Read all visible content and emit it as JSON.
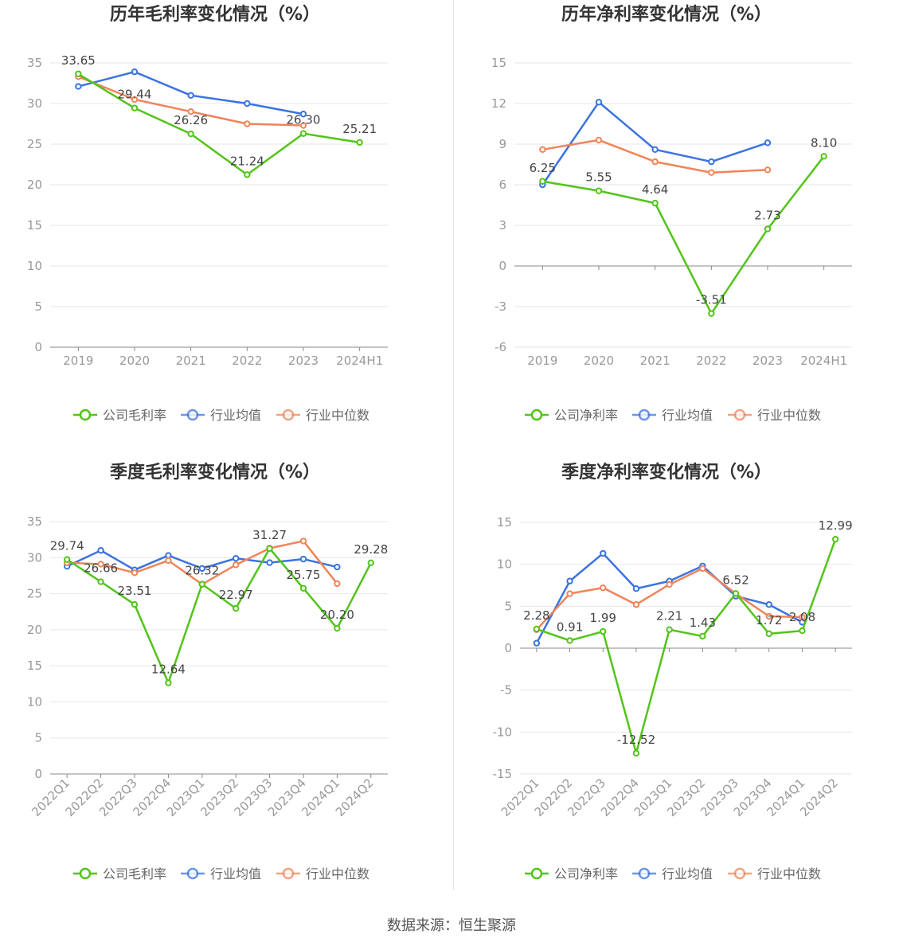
{
  "source": "数据来源：恒生聚源",
  "colors": {
    "company": "#52c41a",
    "avg": "#3b73e0",
    "median": "#f0845a"
  },
  "legend": {
    "gross_company": "公司毛利率",
    "net_company": "公司净利率",
    "avg": "行业均值",
    "median": "行业中位数"
  },
  "chart_data": [
    {
      "type": "line",
      "title": "历年毛利率变化情况（%）",
      "categories": [
        "2019",
        "2020",
        "2021",
        "2022",
        "2023",
        "2024H1"
      ],
      "ylim": [
        0,
        35
      ],
      "yticks": [
        0,
        5,
        10,
        15,
        20,
        25,
        30,
        35
      ],
      "series": [
        {
          "name": "公司毛利率",
          "values": [
            33.65,
            29.44,
            26.26,
            21.24,
            26.3,
            25.21
          ],
          "labels": [
            "33.65",
            "29.44",
            "26.26",
            "21.24",
            "26.30",
            "25.21"
          ]
        },
        {
          "name": "行业均值",
          "values": [
            32.1,
            33.9,
            31.0,
            30.0,
            28.7,
            null
          ]
        },
        {
          "name": "行业中位数",
          "values": [
            33.3,
            30.5,
            29.0,
            27.5,
            27.3,
            null
          ]
        }
      ]
    },
    {
      "type": "line",
      "title": "历年净利率变化情况（%）",
      "categories": [
        "2019",
        "2020",
        "2021",
        "2022",
        "2023",
        "2024H1"
      ],
      "ylim": [
        -6,
        15
      ],
      "yticks": [
        -6,
        -3,
        0,
        3,
        6,
        9,
        12,
        15
      ],
      "series": [
        {
          "name": "公司净利率",
          "values": [
            6.25,
            5.55,
            4.64,
            -3.51,
            2.73,
            8.1
          ],
          "labels": [
            "6.25",
            "5.55",
            "4.64",
            "-3.51",
            "2.73",
            "8.10"
          ]
        },
        {
          "name": "行业均值",
          "values": [
            6.0,
            12.1,
            8.6,
            7.7,
            9.1,
            null
          ]
        },
        {
          "name": "行业中位数",
          "values": [
            8.6,
            9.3,
            7.7,
            6.9,
            7.1,
            null
          ]
        }
      ]
    },
    {
      "type": "line",
      "title": "季度毛利率变化情况（%）",
      "categories": [
        "2022Q1",
        "2022Q2",
        "2022Q3",
        "2022Q4",
        "2023Q1",
        "2023Q2",
        "2023Q3",
        "2023Q4",
        "2024Q1",
        "2024Q2"
      ],
      "ylim": [
        0,
        35
      ],
      "yticks": [
        0,
        5,
        10,
        15,
        20,
        25,
        30,
        35
      ],
      "series": [
        {
          "name": "公司毛利率",
          "values": [
            29.74,
            26.66,
            23.51,
            12.64,
            26.32,
            22.97,
            31.27,
            25.75,
            20.2,
            29.28
          ],
          "labels": [
            "29.74",
            "26.66",
            "23.51",
            "12.64",
            "26.32",
            "22.97",
            "31.27",
            "25.75",
            "20.20",
            "29.28"
          ]
        },
        {
          "name": "行业均值",
          "values": [
            28.8,
            31.0,
            28.3,
            30.3,
            28.5,
            29.9,
            29.3,
            29.8,
            28.7,
            null
          ]
        },
        {
          "name": "行业中位数",
          "values": [
            29.3,
            29.1,
            27.9,
            29.6,
            26.3,
            29.0,
            31.3,
            32.3,
            26.4,
            null
          ]
        }
      ]
    },
    {
      "type": "line",
      "title": "季度净利率变化情况（%）",
      "categories": [
        "2022Q1",
        "2022Q2",
        "2022Q3",
        "2022Q4",
        "2023Q1",
        "2023Q2",
        "2023Q3",
        "2023Q4",
        "2024Q1",
        "2024Q2"
      ],
      "ylim": [
        -15,
        15
      ],
      "yticks": [
        -15,
        -10,
        -5,
        0,
        5,
        10,
        15
      ],
      "series": [
        {
          "name": "公司净利率",
          "values": [
            2.28,
            0.91,
            1.99,
            -12.52,
            2.21,
            1.43,
            6.52,
            1.72,
            2.08,
            12.99
          ],
          "labels": [
            "2.28",
            "0.91",
            "1.99",
            "-12.52",
            "2.21",
            "1.43",
            "6.52",
            "1.72",
            "2.08",
            "12.99"
          ]
        },
        {
          "name": "行业均值",
          "values": [
            0.6,
            8.0,
            11.3,
            7.1,
            8.0,
            9.8,
            6.2,
            5.2,
            3.1,
            null
          ]
        },
        {
          "name": "行业中位数",
          "values": [
            2.2,
            6.5,
            7.2,
            5.2,
            7.6,
            9.5,
            6.5,
            3.8,
            3.7,
            null
          ]
        }
      ]
    }
  ]
}
